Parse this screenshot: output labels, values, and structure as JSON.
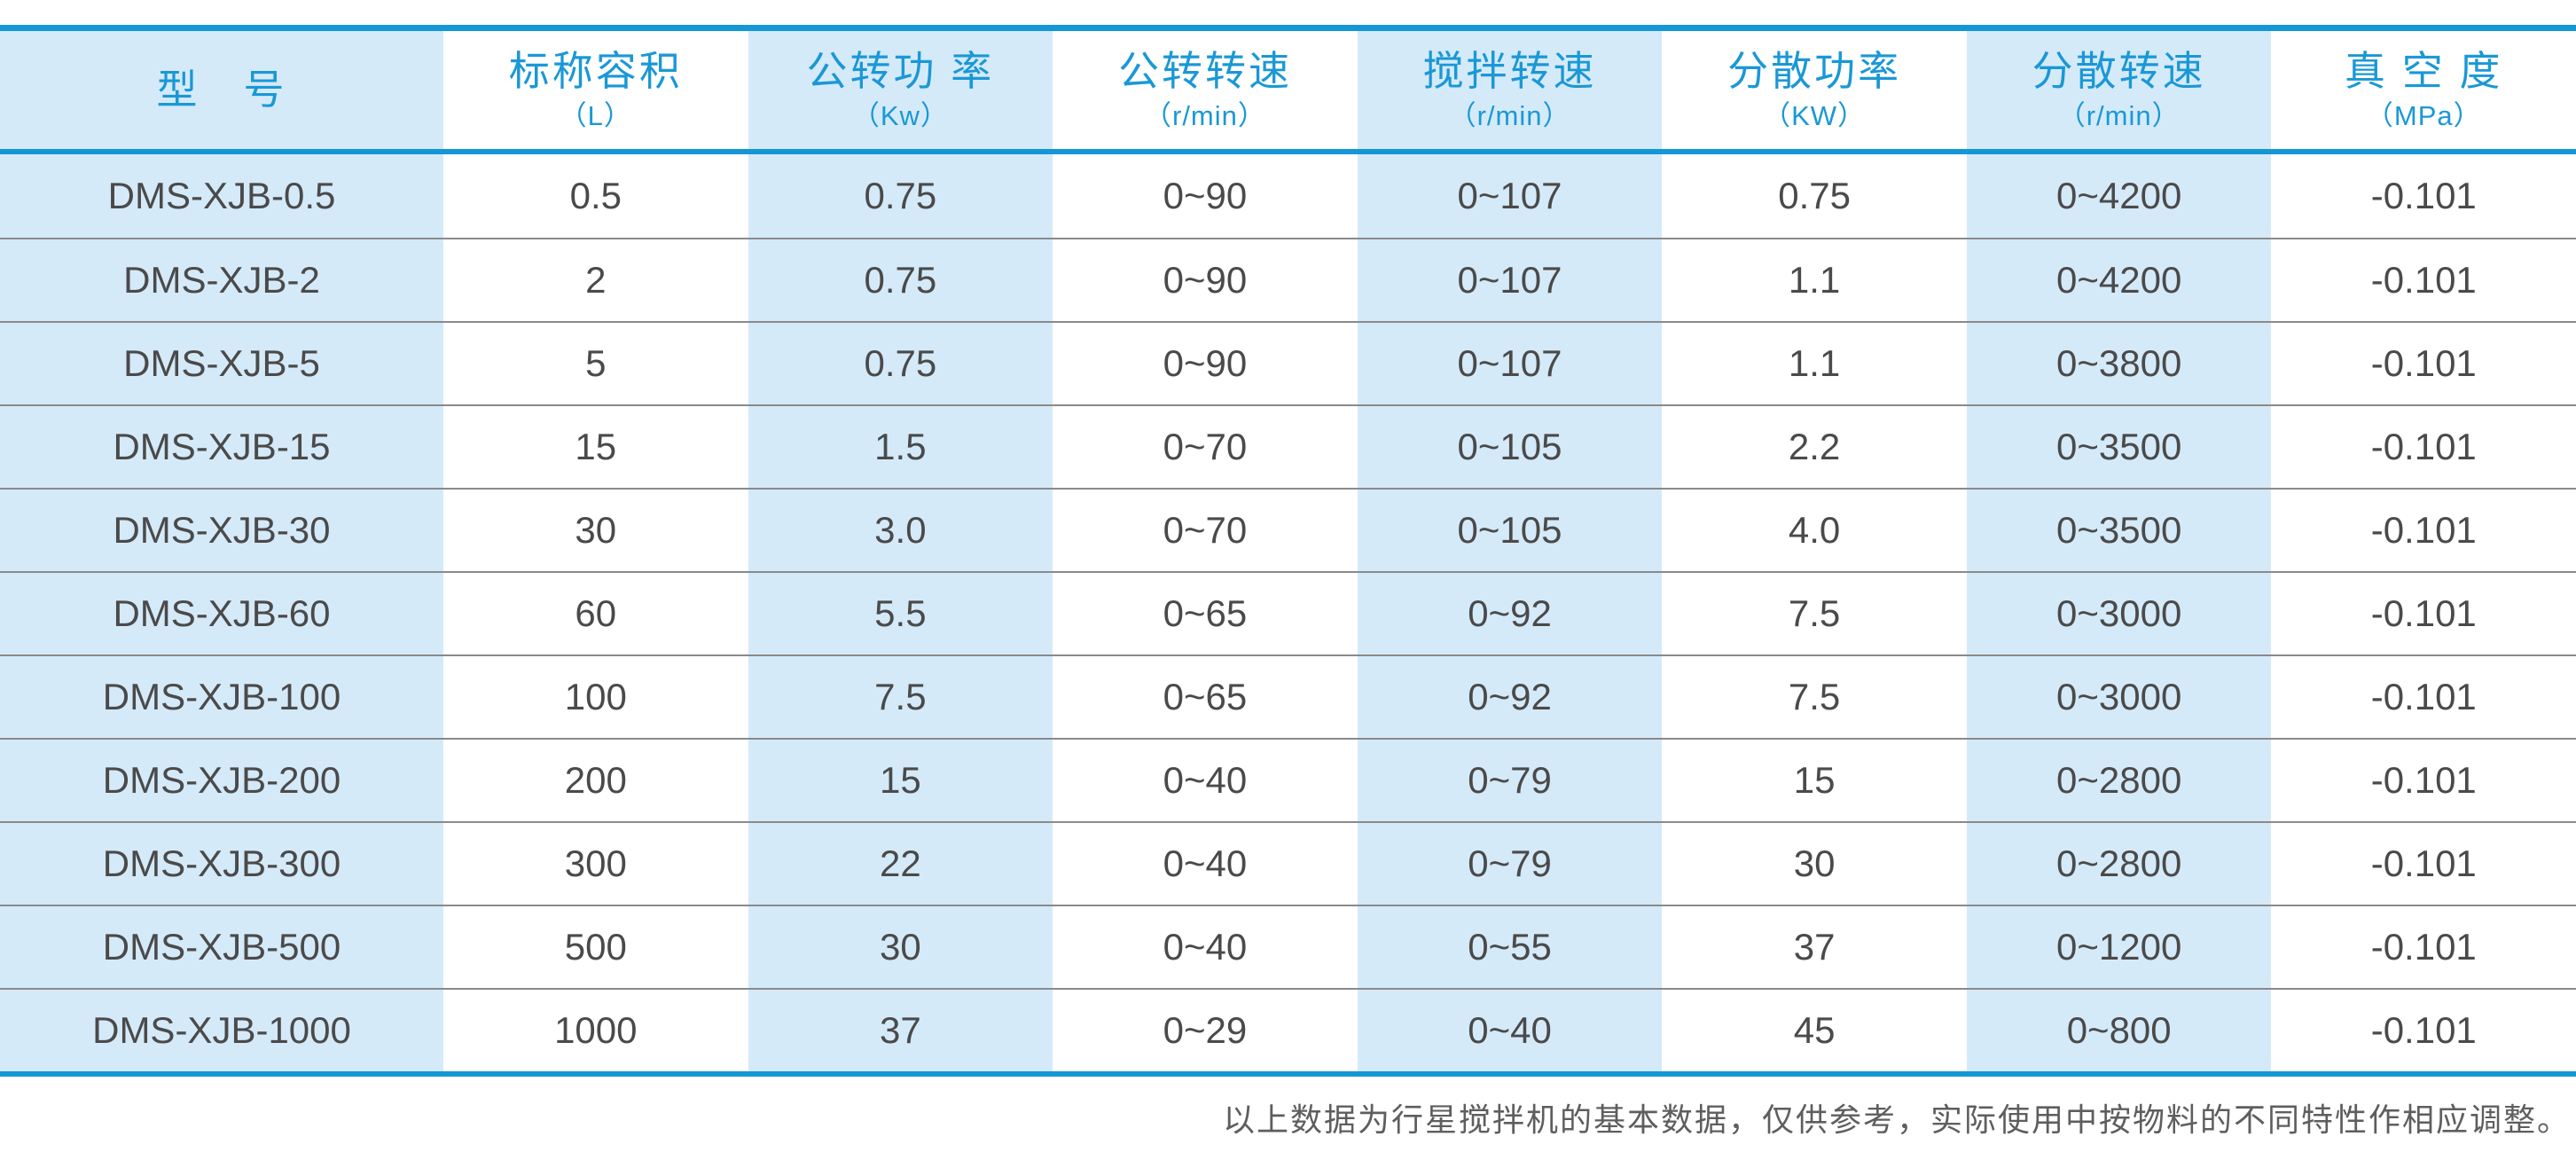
{
  "header": {
    "columns": [
      {
        "title": "型　号",
        "unit": ""
      },
      {
        "title": "标称容积",
        "unit": "（L）"
      },
      {
        "title": "公转功 率",
        "unit": "（Kw）"
      },
      {
        "title": "公转转速",
        "unit": "（r/min）"
      },
      {
        "title": "搅拌转速",
        "unit": "（r/min）"
      },
      {
        "title": "分散功率",
        "unit": "（KW）"
      },
      {
        "title": "分散转速",
        "unit": "（r/min）"
      },
      {
        "title": "真 空 度",
        "unit": "（MPa）"
      }
    ]
  },
  "table": {
    "rows": [
      {
        "model": "DMS-XJB-0.5",
        "values": [
          "0.5",
          "0.75",
          "0~90",
          "0~107",
          "0.75",
          "0~4200",
          "-0.101"
        ]
      },
      {
        "model": "DMS-XJB-2",
        "values": [
          "2",
          "0.75",
          "0~90",
          "0~107",
          "1.1",
          "0~4200",
          "-0.101"
        ]
      },
      {
        "model": "DMS-XJB-5",
        "values": [
          "5",
          "0.75",
          "0~90",
          "0~107",
          "1.1",
          "0~3800",
          "-0.101"
        ]
      },
      {
        "model": "DMS-XJB-15",
        "values": [
          "15",
          "1.5",
          "0~70",
          "0~105",
          "2.2",
          "0~3500",
          "-0.101"
        ]
      },
      {
        "model": "DMS-XJB-30",
        "values": [
          "30",
          "3.0",
          "0~70",
          "0~105",
          "4.0",
          "0~3500",
          "-0.101"
        ]
      },
      {
        "model": "DMS-XJB-60",
        "values": [
          "60",
          "5.5",
          "0~65",
          "0~92",
          "7.5",
          "0~3000",
          "-0.101"
        ]
      },
      {
        "model": "DMS-XJB-100",
        "values": [
          "100",
          "7.5",
          "0~65",
          "0~92",
          "7.5",
          "0~3000",
          "-0.101"
        ]
      },
      {
        "model": "DMS-XJB-200",
        "values": [
          "200",
          "15",
          "0~40",
          "0~79",
          "15",
          "0~2800",
          "-0.101"
        ]
      },
      {
        "model": "DMS-XJB-300",
        "values": [
          "300",
          "22",
          "0~40",
          "0~79",
          "30",
          "0~2800",
          "-0.101"
        ]
      },
      {
        "model": "DMS-XJB-500",
        "values": [
          "500",
          "30",
          "0~40",
          "0~55",
          "37",
          "0~1200",
          "-0.101"
        ]
      },
      {
        "model": "DMS-XJB-1000",
        "values": [
          "1000",
          "37",
          "0~29",
          "0~40",
          "45",
          "0~800",
          "-0.101"
        ]
      }
    ]
  },
  "note": "以上数据为行星搅拌机的基本数据，仅供参考，实际使用中按物料的不同特性作相应调整。",
  "colors": {
    "accent_blue_line": "#1497d6",
    "header_text_blue": "#1a98d6",
    "column_stripe_blue": "#d5eaf8",
    "body_text_gray": "#4a4a4a",
    "row_divider_gray": "#8a8a8a",
    "note_text_gray": "#5e5e5e"
  }
}
